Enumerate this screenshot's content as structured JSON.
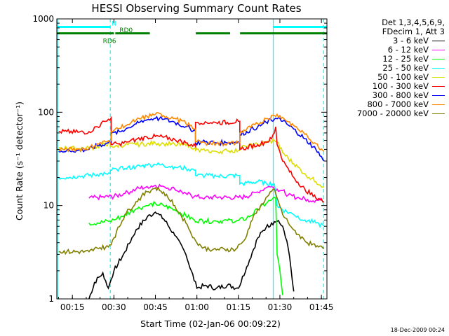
{
  "chart_data": {
    "type": "line",
    "title": "HESSI Observing Summary Count Rates",
    "xlabel": "Start Time (02-Jan-06 00:09:22)",
    "ylabel": "Count Rate (s⁻¹ detector⁻¹)",
    "y_scale": "log",
    "ylim": [
      1,
      1000
    ],
    "xlim_minutes": [
      9.37,
      107
    ],
    "x_ticks": [
      "00:15",
      "00:30",
      "00:45",
      "01:00",
      "01:15",
      "01:30",
      "01:45"
    ],
    "x_tick_minutes": [
      15,
      30,
      45,
      60,
      75,
      90,
      105
    ],
    "y_ticks": [
      "1",
      "10",
      "100",
      "1000"
    ],
    "y_tick_values": [
      1,
      10,
      100,
      1000
    ],
    "legend_header": [
      "Det 1,3,4,5,6,9,",
      "FDecim 1, Att 3"
    ],
    "series": [
      {
        "name": "3 - 6 keV",
        "color": "#000000",
        "points": [
          [
            21,
            1
          ],
          [
            23,
            1.5
          ],
          [
            26,
            1.9
          ],
          [
            28,
            1.3
          ],
          [
            30,
            2.0
          ],
          [
            34,
            3.2
          ],
          [
            38,
            5.5
          ],
          [
            42,
            7.5
          ],
          [
            45,
            8.5
          ],
          [
            48,
            7.2
          ],
          [
            52,
            4.8
          ],
          [
            56,
            3.0
          ],
          [
            58,
            2.0
          ],
          [
            60,
            1.3
          ],
          [
            63,
            1.4
          ],
          [
            67,
            1.3
          ],
          [
            71,
            1.4
          ],
          [
            75,
            1.3
          ],
          [
            78,
            2.2
          ],
          [
            82,
            4.5
          ],
          [
            85,
            5.8
          ],
          [
            87,
            6.5
          ],
          [
            89,
            6.8
          ],
          [
            91,
            6.0
          ],
          [
            93,
            3.5
          ],
          [
            95,
            1.2
          ]
        ]
      },
      {
        "name": "6 - 12 keV",
        "color": "#ff00ff",
        "points": [
          [
            21,
            12
          ],
          [
            24,
            12.2
          ],
          [
            28,
            12.4
          ],
          [
            30,
            12.5
          ],
          [
            34,
            13.5
          ],
          [
            38,
            15
          ],
          [
            42,
            16
          ],
          [
            45,
            16.5
          ],
          [
            48,
            16
          ],
          [
            52,
            15
          ],
          [
            56,
            13.5
          ],
          [
            59,
            12.5
          ],
          [
            63,
            12.2
          ],
          [
            67,
            12.3
          ],
          [
            71,
            12.2
          ],
          [
            75,
            12.2
          ],
          [
            78,
            12.5
          ],
          [
            82,
            14
          ],
          [
            85,
            15.5
          ],
          [
            87,
            16
          ],
          [
            89,
            15
          ],
          [
            91,
            14.5
          ],
          [
            93,
            13
          ],
          [
            97,
            12
          ],
          [
            100,
            11.6
          ],
          [
            103,
            11.4
          ],
          [
            105,
            11.3
          ]
        ]
      },
      {
        "name": "12 - 25 keV",
        "color": "#00ff00",
        "points": [
          [
            21,
            6.5
          ],
          [
            24,
            6.5
          ],
          [
            28,
            6.8
          ],
          [
            30,
            7.0
          ],
          [
            34,
            8.0
          ],
          [
            38,
            9.2
          ],
          [
            42,
            10
          ],
          [
            45,
            10.5
          ],
          [
            48,
            10
          ],
          [
            52,
            9.0
          ],
          [
            56,
            7.8
          ],
          [
            59,
            7.0
          ],
          [
            63,
            6.8
          ],
          [
            67,
            6.8
          ],
          [
            71,
            6.9
          ],
          [
            75,
            6.9
          ],
          [
            78,
            7.3
          ],
          [
            82,
            9.0
          ],
          [
            85,
            10.5
          ],
          [
            87,
            11.5
          ],
          [
            88.5,
            12
          ],
          [
            89,
            3.0
          ],
          [
            90,
            2.0
          ],
          [
            91,
            1.1
          ]
        ]
      },
      {
        "name": "25 - 50 keV",
        "color": "#00ffff",
        "points": [
          [
            10,
            20
          ],
          [
            13,
            20
          ],
          [
            17,
            20.5
          ],
          [
            21,
            21
          ],
          [
            24,
            21.5
          ],
          [
            27,
            22
          ],
          [
            28.7,
            22
          ],
          [
            28.7,
            24
          ],
          [
            31,
            24.5
          ],
          [
            34,
            25
          ],
          [
            38,
            26
          ],
          [
            42,
            27
          ],
          [
            45,
            27.5
          ],
          [
            48,
            27
          ],
          [
            52,
            26
          ],
          [
            56,
            25
          ],
          [
            59.5,
            24
          ],
          [
            59.5,
            21
          ],
          [
            63,
            21
          ],
          [
            67,
            20.5
          ],
          [
            71,
            20.8
          ],
          [
            75,
            21
          ],
          [
            75.5,
            21
          ],
          [
            75.5,
            17
          ],
          [
            78,
            17.5
          ],
          [
            82,
            18
          ],
          [
            85,
            17.5
          ],
          [
            88,
            17
          ],
          [
            89,
            10
          ],
          [
            91,
            9
          ],
          [
            95,
            8
          ],
          [
            99,
            7
          ],
          [
            103,
            6.5
          ],
          [
            106,
            6
          ]
        ]
      },
      {
        "name": "50 - 100 keV",
        "color": "#dddd00",
        "points": [
          [
            10,
            42
          ],
          [
            13,
            41
          ],
          [
            17,
            41
          ],
          [
            21,
            41
          ],
          [
            24,
            43
          ],
          [
            27,
            45
          ],
          [
            28.7,
            47
          ],
          [
            28.7,
            43
          ],
          [
            31,
            44
          ],
          [
            34,
            44.5
          ],
          [
            38,
            45
          ],
          [
            42,
            46
          ],
          [
            45,
            46.5
          ],
          [
            48,
            46
          ],
          [
            52,
            45
          ],
          [
            56,
            44
          ],
          [
            59.5,
            42
          ],
          [
            59.5,
            39
          ],
          [
            63,
            38.5
          ],
          [
            67,
            38
          ],
          [
            71,
            38.5
          ],
          [
            75,
            39
          ],
          [
            75.5,
            39
          ],
          [
            75.5,
            42
          ],
          [
            78,
            43
          ],
          [
            82,
            45
          ],
          [
            85,
            47
          ],
          [
            88,
            50
          ],
          [
            89,
            48
          ],
          [
            91,
            37
          ],
          [
            95,
            28
          ],
          [
            99,
            22
          ],
          [
            103,
            18
          ],
          [
            106,
            16
          ]
        ]
      },
      {
        "name": "100 - 300 keV",
        "color": "#ff0000",
        "points": [
          [
            10,
            62
          ],
          [
            13,
            62
          ],
          [
            17,
            61
          ],
          [
            19,
            61
          ],
          [
            21,
            62
          ],
          [
            24,
            70
          ],
          [
            27,
            80
          ],
          [
            29,
            87
          ],
          [
            29,
            45
          ],
          [
            32,
            46
          ],
          [
            35,
            48
          ],
          [
            38,
            51
          ],
          [
            42,
            54
          ],
          [
            45,
            55
          ],
          [
            48,
            54
          ],
          [
            52,
            51
          ],
          [
            56,
            47
          ],
          [
            59.5,
            43
          ],
          [
            59.5,
            78
          ],
          [
            63,
            79
          ],
          [
            67,
            77
          ],
          [
            71,
            78
          ],
          [
            75,
            80
          ],
          [
            75.5,
            80
          ],
          [
            75.5,
            40
          ],
          [
            78,
            42
          ],
          [
            82,
            45
          ],
          [
            85,
            48
          ],
          [
            87,
            52
          ],
          [
            88,
            60
          ],
          [
            88.5,
            70
          ],
          [
            89,
            45
          ],
          [
            91,
            30
          ],
          [
            95,
            20
          ],
          [
            99,
            15
          ],
          [
            103,
            12
          ],
          [
            106,
            11
          ]
        ]
      },
      {
        "name": "300 - 800 keV",
        "color": "#0000ff",
        "points": [
          [
            10,
            38
          ],
          [
            13,
            39
          ],
          [
            17,
            39
          ],
          [
            21,
            40
          ],
          [
            24,
            44
          ],
          [
            27,
            46
          ],
          [
            29,
            48
          ],
          [
            29,
            58
          ],
          [
            32,
            62
          ],
          [
            35,
            68
          ],
          [
            38,
            75
          ],
          [
            42,
            83
          ],
          [
            45,
            86
          ],
          [
            48,
            84
          ],
          [
            52,
            78
          ],
          [
            56,
            70
          ],
          [
            59.5,
            63
          ],
          [
            59.5,
            47
          ],
          [
            63,
            48
          ],
          [
            67,
            47
          ],
          [
            71,
            47
          ],
          [
            75,
            48
          ],
          [
            75.5,
            48
          ],
          [
            75.5,
            57
          ],
          [
            78,
            62
          ],
          [
            82,
            70
          ],
          [
            85,
            78
          ],
          [
            88,
            84
          ],
          [
            89,
            85
          ],
          [
            91,
            80
          ],
          [
            95,
            66
          ],
          [
            99,
            52
          ],
          [
            103,
            40
          ],
          [
            106,
            30
          ]
        ]
      },
      {
        "name": "800 - 7000 keV",
        "color": "#ff8800",
        "points": [
          [
            10,
            40
          ],
          [
            13,
            40
          ],
          [
            17,
            40
          ],
          [
            21,
            41
          ],
          [
            24,
            46
          ],
          [
            27,
            48
          ],
          [
            29,
            50
          ],
          [
            29,
            62
          ],
          [
            32,
            67
          ],
          [
            35,
            74
          ],
          [
            38,
            82
          ],
          [
            42,
            90
          ],
          [
            45,
            95
          ],
          [
            48,
            92
          ],
          [
            52,
            86
          ],
          [
            56,
            76
          ],
          [
            59.5,
            66
          ],
          [
            59.5,
            48
          ],
          [
            63,
            47
          ],
          [
            67,
            46
          ],
          [
            71,
            46
          ],
          [
            75,
            47
          ],
          [
            75.5,
            47
          ],
          [
            75.5,
            60
          ],
          [
            78,
            66
          ],
          [
            82,
            75
          ],
          [
            85,
            85
          ],
          [
            88,
            92
          ],
          [
            89,
            95
          ],
          [
            91,
            88
          ],
          [
            95,
            72
          ],
          [
            99,
            58
          ],
          [
            103,
            46
          ],
          [
            106,
            38
          ]
        ]
      },
      {
        "name": "7000 - 20000 keV",
        "color": "#808000",
        "points": [
          [
            10,
            3.2
          ],
          [
            13,
            3.2
          ],
          [
            17,
            3.2
          ],
          [
            21,
            3.2
          ],
          [
            24,
            3.5
          ],
          [
            28,
            3.6
          ],
          [
            30,
            4.5
          ],
          [
            34,
            8
          ],
          [
            38,
            11
          ],
          [
            42,
            14
          ],
          [
            45,
            15.5
          ],
          [
            48,
            14
          ],
          [
            52,
            10
          ],
          [
            56,
            6.5
          ],
          [
            59,
            4.5
          ],
          [
            62,
            3.5
          ],
          [
            66,
            3.4
          ],
          [
            70,
            3.4
          ],
          [
            74,
            3.4
          ],
          [
            77,
            4.2
          ],
          [
            80,
            7
          ],
          [
            83,
            10
          ],
          [
            86,
            13
          ],
          [
            88,
            15
          ],
          [
            89,
            12
          ],
          [
            91,
            8
          ],
          [
            95,
            5.5
          ],
          [
            99,
            4.2
          ],
          [
            103,
            3.6
          ],
          [
            106,
            3.5
          ]
        ]
      }
    ],
    "segments": [
      {
        "label": "N",
        "color": "#00ffff",
        "y": 820,
        "ranges": [
          [
            9.5,
            28.7
          ],
          [
            87.5,
            107
          ]
        ]
      },
      {
        "label": "RD0",
        "color": "#008000",
        "y": 700,
        "ranges": [
          [
            9.5,
            30
          ],
          [
            30.5,
            43
          ],
          [
            59.6,
            72
          ],
          [
            75.6,
            107
          ]
        ]
      }
    ],
    "segment_labels": [
      {
        "text": "N",
        "color": "#00ffff",
        "minute": 29.2,
        "value": 850
      },
      {
        "text": "RD0",
        "color": "#008000",
        "minute": 32,
        "value": 720
      },
      {
        "text": "RD6",
        "color": "#008000",
        "minute": 26,
        "value": 550
      }
    ],
    "vlines": [
      {
        "minute": 9.6,
        "style": "solid",
        "color": "#00ffff"
      },
      {
        "minute": 28.7,
        "style": "dashed",
        "color": "#00ffff"
      },
      {
        "minute": 87.6,
        "style": "solid",
        "color": "#00ffff"
      },
      {
        "minute": 105.8,
        "style": "dashed",
        "color": "#00ffff"
      }
    ]
  },
  "footer": {
    "stamp": "18-Dec-2009 00:24"
  }
}
